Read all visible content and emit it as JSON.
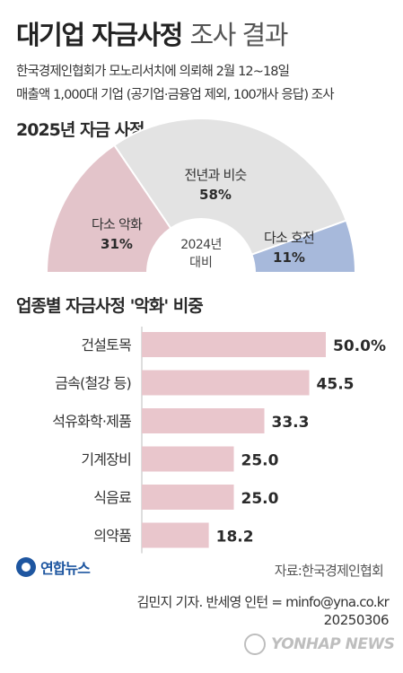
{
  "header": {
    "title_bold": "대기업 자금사정",
    "title_light": "조사 결과",
    "subtitle_line1": "한국경제인협회가 모노리서치에 의뢰해 2월 12~18일",
    "subtitle_line2": "매출액 1,000대 기업 (공기업·금융업 제외, 100개사 응답) 조사"
  },
  "donut": {
    "section_title": "2025년 자금 사정",
    "center_line1": "2024년",
    "center_line2": "대비",
    "colors": {
      "worse": "#e3c4ca",
      "same": "#e3e3e3",
      "better": "#a7b9db"
    }
  },
  "bars": {
    "section_title": "업종별 자금사정 '악화' 비중",
    "bar_color": "#e9c6cc"
  },
  "chart_data": [
    {
      "type": "pie",
      "title": "2025년 자금 사정",
      "categories": [
        "다소 악화",
        "전년과 비슷",
        "다소 호전"
      ],
      "values": [
        31,
        58,
        11
      ],
      "value_labels": [
        "31%",
        "58%",
        "11%"
      ],
      "unit": "%"
    },
    {
      "type": "bar",
      "title": "업종별 자금사정 '악화' 비중",
      "categories": [
        "건설토목",
        "금속(철강 등)",
        "석유화학·제품",
        "기계장비",
        "식음료",
        "의약품"
      ],
      "values": [
        50.0,
        45.5,
        33.3,
        25.0,
        25.0,
        18.2
      ],
      "value_labels": [
        "50.0%",
        "45.5",
        "33.3",
        "25.0",
        "25.0",
        "18.2"
      ]
    }
  ],
  "footer": {
    "source": "자료:한국경제인협회",
    "credit": "김민지 기자. 반세영 인턴 = minfo@yna.co.kr",
    "date": "20250306",
    "logo_text": "연합뉴스",
    "watermark_text": "YONHAP NEWS"
  }
}
